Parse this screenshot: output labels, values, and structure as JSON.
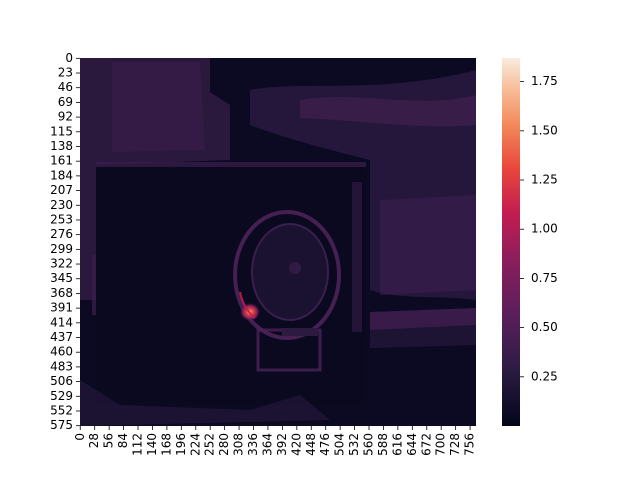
{
  "chart_data": {
    "type": "heatmap",
    "title": "",
    "xlabel": "",
    "ylabel": "",
    "grid": false,
    "x_tick_labels": [
      "0",
      "28",
      "56",
      "84",
      "112",
      "140",
      "168",
      "196",
      "224",
      "252",
      "280",
      "308",
      "336",
      "364",
      "392",
      "420",
      "448",
      "476",
      "504",
      "532",
      "560",
      "588",
      "616",
      "644",
      "672",
      "700",
      "728",
      "756"
    ],
    "y_tick_labels": [
      "0",
      "23",
      "46",
      "69",
      "92",
      "115",
      "138",
      "161",
      "184",
      "207",
      "230",
      "253",
      "276",
      "299",
      "322",
      "345",
      "368",
      "391",
      "414",
      "437",
      "460",
      "483",
      "506",
      "529",
      "552",
      "575"
    ],
    "x_extent": [
      0,
      768
    ],
    "y_extent": [
      0,
      576
    ],
    "colorbar": {
      "colormap": "rocket",
      "range": [
        0.0,
        1.87
      ],
      "tick_labels": [
        "0.25",
        "0.50",
        "0.75",
        "1.00",
        "1.25",
        "1.50",
        "1.75"
      ],
      "placement": "right"
    },
    "approximate_regions": [
      {
        "description": "background baseline",
        "value": 0.05
      },
      {
        "description": "upper-left wall band",
        "x": [
          28,
          252
        ],
        "y": [
          0,
          184
        ],
        "value": 0.2
      },
      {
        "description": "right side structure",
        "x": [
          560,
          768
        ],
        "y": [
          0,
          345
        ],
        "value": 0.22
      },
      {
        "description": "right lower band",
        "x": [
          560,
          768
        ],
        "y": [
          414,
          437
        ],
        "value": 0.3
      },
      {
        "description": "camera lens ring",
        "x": [
          308,
          476
        ],
        "y": [
          322,
          414
        ],
        "value": 0.35
      },
      {
        "description": "bright hotspot on lens edge",
        "x": 336,
        "y": 414,
        "value": 1.87
      }
    ]
  }
}
